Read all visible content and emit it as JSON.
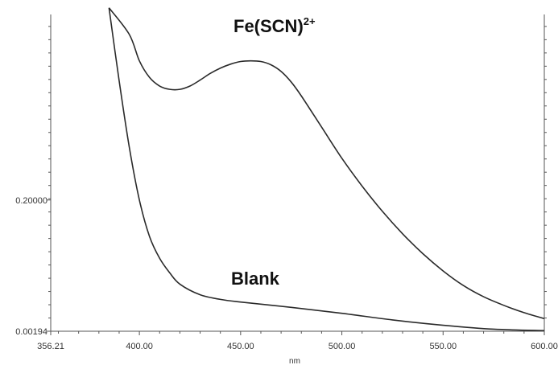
{
  "chart_data": {
    "type": "line",
    "xlabel": "nm",
    "xlim": [
      356.21,
      600.0
    ],
    "ylim": [
      0.00194,
      0.48
    ],
    "x_ticks": [
      {
        "value": 356.21,
        "label": "356.21"
      },
      {
        "value": 400.0,
        "label": "400.00"
      },
      {
        "value": 450.0,
        "label": "450.00"
      },
      {
        "value": 500.0,
        "label": "500.00"
      },
      {
        "value": 550.0,
        "label": "550.00"
      },
      {
        "value": 600.0,
        "label": "600.00"
      }
    ],
    "y_ticks": [
      {
        "value": 0.00194,
        "label": "0.00194"
      },
      {
        "value": 0.2,
        "label": "0.20000"
      }
    ],
    "series": [
      {
        "name": "Fe(SCN)",
        "name_superscript": "2+",
        "x": [
          385,
          395,
          400,
          405,
          410,
          415,
          420,
          425,
          430,
          435,
          440,
          445,
          450,
          455,
          460,
          465,
          470,
          475,
          480,
          490,
          500,
          510,
          520,
          530,
          540,
          550,
          560,
          570,
          580,
          590,
          600
        ],
        "y": [
          0.49,
          0.45,
          0.41,
          0.385,
          0.372,
          0.367,
          0.367,
          0.372,
          0.381,
          0.391,
          0.399,
          0.405,
          0.409,
          0.41,
          0.409,
          0.404,
          0.394,
          0.378,
          0.357,
          0.31,
          0.263,
          0.221,
          0.183,
          0.149,
          0.119,
          0.093,
          0.071,
          0.054,
          0.041,
          0.03,
          0.021
        ]
      },
      {
        "name": "Blank",
        "x": [
          385,
          390,
          395,
          400,
          405,
          410,
          415,
          420,
          430,
          440,
          450,
          475,
          500,
          525,
          550,
          575,
          600
        ],
        "y": [
          0.49,
          0.38,
          0.28,
          0.2,
          0.145,
          0.112,
          0.09,
          0.073,
          0.057,
          0.05,
          0.046,
          0.038,
          0.029,
          0.019,
          0.011,
          0.005,
          0.003
        ]
      }
    ]
  }
}
